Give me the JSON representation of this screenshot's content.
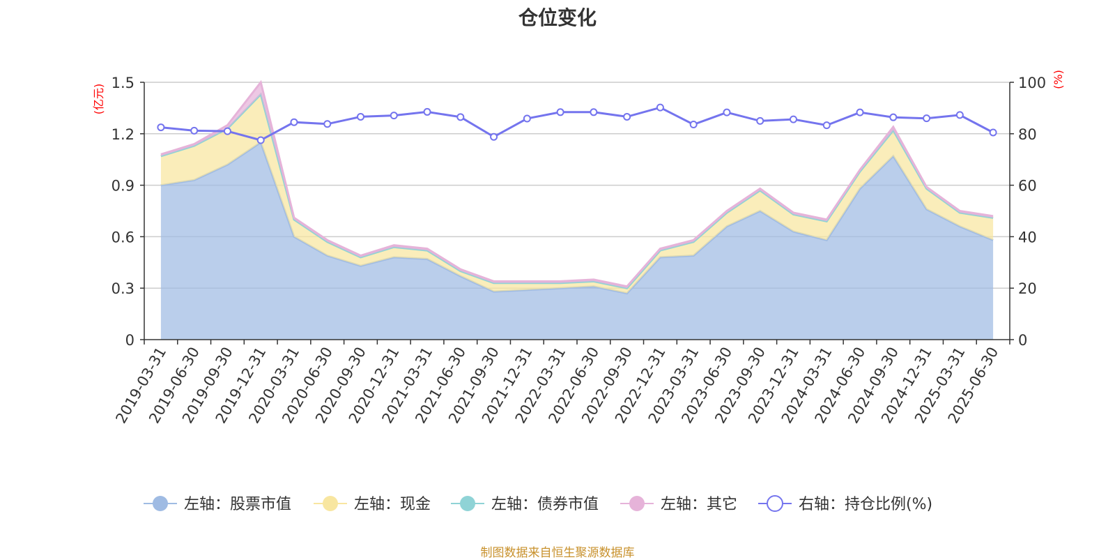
{
  "title": "仓位变化",
  "source": "制图数据来自恒生聚源数据库",
  "colors": {
    "stock": "#9fbbe3",
    "cash": "#f8e6a0",
    "bond": "#8fd3d6",
    "other": "#e6b3d9",
    "ratio": "#7474ee",
    "unit": "#ff0000",
    "axis": "#333333",
    "grid": "#cccccc"
  },
  "chart_data": {
    "type": "area",
    "title": "仓位变化",
    "categories": [
      "2019-03-31",
      "2019-06-30",
      "2019-09-30",
      "2019-12-31",
      "2020-03-31",
      "2020-06-30",
      "2020-09-30",
      "2020-12-31",
      "2021-03-31",
      "2021-06-30",
      "2021-09-30",
      "2021-12-31",
      "2022-03-31",
      "2022-06-30",
      "2022-09-30",
      "2022-12-31",
      "2023-03-31",
      "2023-06-30",
      "2023-09-30",
      "2023-12-31",
      "2024-03-31",
      "2024-06-30",
      "2024-09-30",
      "2024-12-31",
      "2025-03-31",
      "2025-06-30"
    ],
    "y_left": {
      "unit": "(亿元)",
      "range": [
        0,
        1.5
      ],
      "ticks": [
        "0",
        "0.3",
        "0.6",
        "0.9",
        "1.2",
        "1.5"
      ]
    },
    "y_right": {
      "unit": "(%)",
      "range": [
        0,
        100
      ],
      "ticks": [
        "0",
        "20",
        "40",
        "60",
        "80",
        "100"
      ]
    },
    "grid": true,
    "legend_position": "bottom",
    "series": [
      {
        "name": "左轴：股票市值",
        "axis": "left",
        "stack": true,
        "color": "#9fbbe3",
        "values": [
          0.9,
          0.93,
          1.02,
          1.15,
          0.6,
          0.49,
          0.43,
          0.48,
          0.47,
          0.37,
          0.28,
          0.29,
          0.3,
          0.31,
          0.27,
          0.48,
          0.49,
          0.66,
          0.75,
          0.63,
          0.58,
          0.88,
          1.07,
          0.76,
          0.66,
          0.58
        ]
      },
      {
        "name": "左轴：现金",
        "axis": "left",
        "stack": true,
        "color": "#f8e6a0",
        "values": [
          0.17,
          0.2,
          0.21,
          0.28,
          0.1,
          0.08,
          0.05,
          0.06,
          0.05,
          0.03,
          0.05,
          0.04,
          0.03,
          0.03,
          0.03,
          0.04,
          0.08,
          0.08,
          0.12,
          0.1,
          0.11,
          0.1,
          0.15,
          0.12,
          0.08,
          0.13
        ]
      },
      {
        "name": "左轴：债券市值",
        "axis": "left",
        "stack": true,
        "color": "#8fd3d6",
        "values": [
          0,
          0,
          0,
          0,
          0,
          0,
          0,
          0,
          0,
          0,
          0,
          0,
          0,
          0,
          0,
          0,
          0,
          0,
          0,
          0,
          0,
          0,
          0,
          0,
          0,
          0
        ]
      },
      {
        "name": "左轴：其它",
        "axis": "left",
        "stack": true,
        "color": "#e6b3d9",
        "values": [
          0.01,
          0.01,
          0.02,
          0.07,
          0.01,
          0.01,
          0.01,
          0.01,
          0.01,
          0.01,
          0.01,
          0.01,
          0.01,
          0.01,
          0.01,
          0.01,
          0.01,
          0.01,
          0.01,
          0.01,
          0.01,
          0.01,
          0.02,
          0.01,
          0.01,
          0.01
        ]
      },
      {
        "name": "右轴：持仓比例(%)",
        "axis": "right",
        "stack": false,
        "color": "#7474ee",
        "values": [
          82.5,
          81.2,
          81.0,
          77.5,
          84.5,
          83.8,
          86.6,
          87.1,
          88.5,
          86.5,
          78.8,
          85.9,
          88.4,
          88.4,
          86.6,
          90.2,
          83.6,
          88.3,
          85.0,
          85.6,
          83.3,
          88.3,
          86.4,
          86.0,
          87.3,
          80.5
        ]
      }
    ]
  }
}
